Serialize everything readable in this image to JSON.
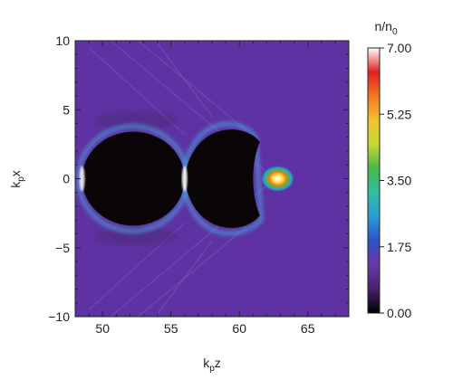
{
  "chart_data": {
    "type": "heatmap",
    "title": "",
    "xlabel": "k",
    "xlabel_sub": "p",
    "xlabel_suffix": "z",
    "ylabel": "k",
    "ylabel_sub": "p",
    "ylabel_suffix": "x",
    "xlim": [
      48,
      68
    ],
    "ylim": [
      -10,
      10
    ],
    "x_ticks": [
      50,
      55,
      60,
      65
    ],
    "y_ticks": [
      10,
      5,
      0,
      -5,
      -10
    ],
    "x_tick_labels": [
      "50",
      "55",
      "60",
      "65"
    ],
    "y_tick_labels": [
      "10",
      "5",
      "0",
      "−5",
      "−10"
    ],
    "background_value": 0.6,
    "features": [
      {
        "kind": "cavity",
        "z_range": [
          48.5,
          56
        ],
        "x_range": [
          -3.4,
          3.4
        ],
        "value": 0.0
      },
      {
        "kind": "cavity",
        "z_range": [
          56,
          61.5
        ],
        "x_range": [
          -3.8,
          3.8
        ],
        "value": 0.0
      },
      {
        "kind": "injected-bunch",
        "z": 62.8,
        "x": 0,
        "peak_value": 7.0
      }
    ],
    "colorbar": {
      "label": "n/n",
      "label_sub": "0",
      "min": 0.0,
      "max": 7.0,
      "ticks": [
        7.0,
        5.25,
        3.5,
        1.75,
        0.0
      ],
      "tick_labels": [
        "7.00",
        "5.25",
        "3.50",
        "1.75",
        "0.00"
      ],
      "colors": [
        "#000000",
        "#4a1f6e",
        "#6a38a8",
        "#2f50c8",
        "#2a9cd6",
        "#30c0a0",
        "#48b848",
        "#c8d830",
        "#f2c230",
        "#f07820",
        "#e02020",
        "#ffffff"
      ]
    },
    "colors": {
      "background": "#5e32a2",
      "cavity": "#0a0608",
      "sheath": "#46a8e0"
    }
  }
}
